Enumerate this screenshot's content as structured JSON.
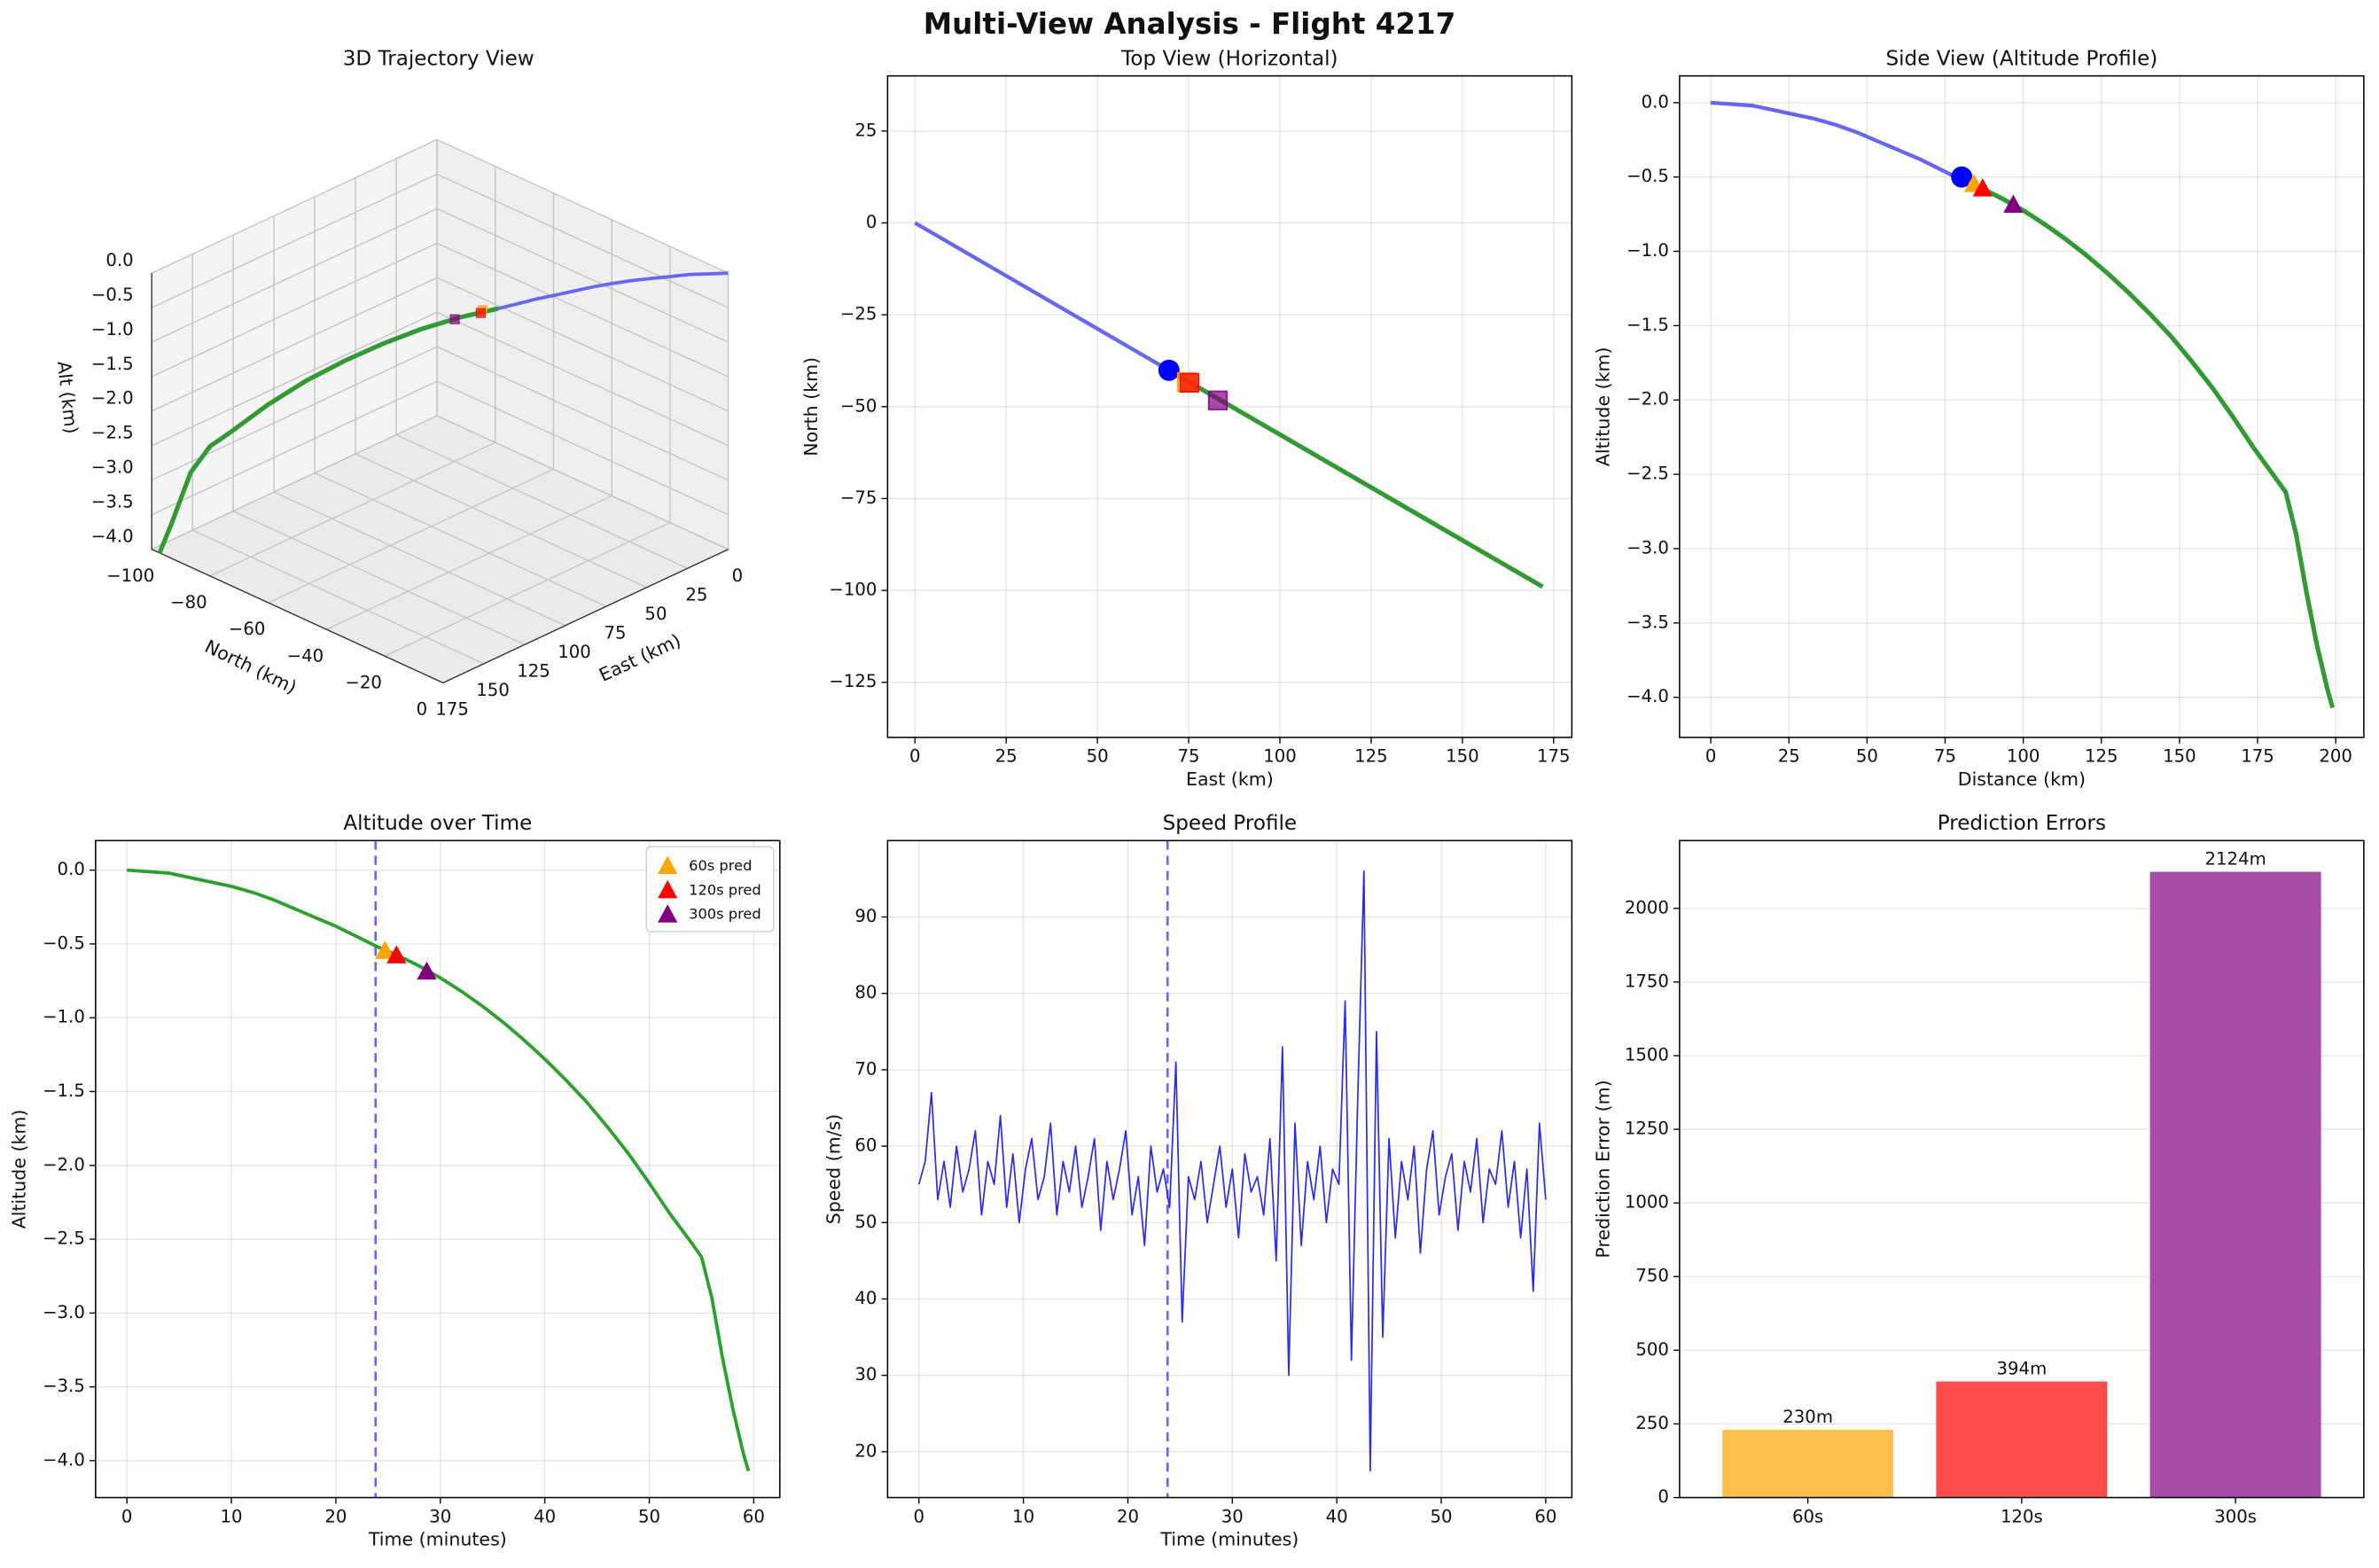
{
  "title": "Multi-View Analysis - Flight 4217",
  "chart_data": [
    {
      "type": "line3d",
      "title": "3D Trajectory View",
      "xlabel": "East (km)",
      "ylabel": "North (km)",
      "zlabel": "Alt (km)",
      "xlim": [
        0,
        175
      ],
      "ylim": [
        -100,
        0
      ],
      "zlim": [
        -4,
        0
      ],
      "xticks": [
        0,
        25,
        50,
        75,
        100,
        125,
        150,
        175
      ],
      "yticks": [
        {
          "value": -100,
          "label": "−100"
        },
        {
          "value": -80,
          "label": "−80"
        },
        {
          "value": -60,
          "label": "−60"
        },
        {
          "value": -40,
          "label": "−40"
        },
        {
          "value": -20,
          "label": "−20"
        },
        0
      ],
      "zticks": [
        {
          "value": 0,
          "label": "0.0"
        },
        {
          "value": -0.5,
          "label": "−0.5"
        },
        {
          "value": -1,
          "label": "−1.0"
        },
        {
          "value": -1.5,
          "label": "−1.5"
        },
        {
          "value": -2,
          "label": "−2.0"
        },
        {
          "value": -2.5,
          "label": "−2.5"
        },
        {
          "value": -3,
          "label": "−3.0"
        },
        {
          "value": -3.5,
          "label": "−3.5"
        },
        {
          "value": -4,
          "label": "−4.0"
        }
      ],
      "series": [
        {
          "color": "#6666f0",
          "linewidth": 2.2,
          "x": [
            0,
            5.8,
            11.6,
            17.4,
            23.2,
            29,
            34.8,
            40.6,
            46.4,
            52.2,
            58,
            63.8,
            69.6
          ],
          "y": [
            0,
            -3.3,
            -6.7,
            -10,
            -13.4,
            -16.7,
            -20,
            -23.4,
            -26.7,
            -30,
            -33.4,
            -36.7,
            -40.1
          ],
          "values": [
            0,
            -0.01,
            -0.02,
            -0.05,
            -0.08,
            -0.11,
            -0.15,
            -0.2,
            -0.26,
            -0.32,
            -0.38,
            -0.45,
            -0.52
          ]
        },
        {
          "color": "#339933",
          "linewidth": 3,
          "x": [
            69.6,
            81.2,
            92.8,
            104.4,
            116,
            127.6,
            139.2,
            150.8,
            156.7,
            162.5,
            168.3,
            172
          ],
          "y": [
            -40.1,
            -46.8,
            -53.5,
            -60.1,
            -66.8,
            -73.5,
            -80.2,
            -86.9,
            -90.2,
            -93.6,
            -97,
            -99
          ],
          "values": [
            -0.52,
            -0.65,
            -0.82,
            -1.03,
            -1.28,
            -1.57,
            -1.92,
            -2.33,
            -2.52,
            -2.9,
            -3.65,
            -4.07
          ]
        },
        {
          "color": "#ffa500",
          "marker": "square",
          "x": [
            74
          ],
          "y": [
            -43
          ],
          "values": [
            -0.55
          ]
        },
        {
          "color": "#ff0000",
          "marker": "square",
          "x": [
            75
          ],
          "y": [
            -43
          ],
          "values": [
            -0.58
          ]
        },
        {
          "color": "#800080",
          "marker": "square",
          "x": [
            82
          ],
          "y": [
            -48
          ],
          "values": [
            -0.69
          ]
        }
      ]
    },
    {
      "type": "line",
      "title": "Top View (Horizontal)",
      "xlabel": "East (km)",
      "ylabel": "North (km)",
      "grid": true,
      "xlim": [
        -7.5,
        180
      ],
      "ylim": [
        -140,
        40
      ],
      "xticks": [
        0,
        25,
        50,
        75,
        100,
        125,
        150,
        175
      ],
      "yticks": [
        25,
        0,
        {
          "value": -25,
          "label": "−25"
        },
        {
          "value": -50,
          "label": "−50"
        },
        {
          "value": -75,
          "label": "−75"
        },
        {
          "value": -100,
          "label": "−100"
        },
        {
          "value": -125,
          "label": "−125"
        }
      ],
      "series": [
        {
          "color": "#6666f0",
          "linewidth": 2.5,
          "x": [
            0,
            69.6
          ],
          "values": [
            0,
            -40.1
          ]
        },
        {
          "color": "#339933",
          "linewidth": 3,
          "x": [
            69.6,
            172
          ],
          "values": [
            -40.1,
            -99
          ]
        },
        {
          "color": "#0000ff",
          "marker": "circle",
          "x": [
            69.6
          ],
          "values": [
            -40.1
          ]
        },
        {
          "color": "#ffa500",
          "marker": "square",
          "x": [
            74.5
          ],
          "values": [
            -43.3
          ]
        },
        {
          "color": "#ff0000",
          "marker": "square",
          "x": [
            75.2
          ],
          "values": [
            -43.5
          ]
        },
        {
          "color": "#800080",
          "marker": "square",
          "x": [
            83
          ],
          "values": [
            -48.3
          ]
        }
      ]
    },
    {
      "type": "line",
      "title": "Side View (Altitude Profile)",
      "xlabel": "Distance (km)",
      "ylabel": "Altitude (km)",
      "grid": true,
      "xlim": [
        -10,
        209
      ],
      "ylim": [
        -4.27,
        0.18
      ],
      "xticks": [
        0,
        25,
        50,
        75,
        100,
        125,
        150,
        175,
        200
      ],
      "yticks": [
        {
          "value": 0,
          "label": "0.0"
        },
        {
          "value": -0.5,
          "label": "−0.5"
        },
        {
          "value": -1,
          "label": "−1.0"
        },
        {
          "value": -1.5,
          "label": "−1.5"
        },
        {
          "value": -2,
          "label": "−2.0"
        },
        {
          "value": -2.5,
          "label": "−2.5"
        },
        {
          "value": -3,
          "label": "−3.0"
        },
        {
          "value": -3.5,
          "label": "−3.5"
        },
        {
          "value": -4,
          "label": "−4.0"
        }
      ],
      "series": [
        {
          "color": "#6666f0",
          "linewidth": 2.5,
          "x": [
            0,
            6.7,
            13.4,
            20.1,
            26.8,
            33.5,
            40.1,
            46.8,
            53.5,
            60.2,
            66.9,
            73.6,
            80.3
          ],
          "values": [
            0,
            -0.01,
            -0.02,
            -0.05,
            -0.08,
            -0.11,
            -0.15,
            -0.2,
            -0.26,
            -0.32,
            -0.38,
            -0.45,
            -0.52
          ]
        },
        {
          "color": "#339933",
          "linewidth": 3,
          "x": [
            80.3,
            87,
            93.7,
            100.4,
            107,
            113.7,
            120.4,
            127.1,
            133.8,
            140.5,
            147.2,
            153.9,
            160.6,
            167.3,
            174,
            180.6,
            184,
            187.3,
            190.7,
            194,
            197.4,
            199
          ],
          "values": [
            -0.52,
            -0.58,
            -0.65,
            -0.73,
            -0.82,
            -0.92,
            -1.03,
            -1.15,
            -1.28,
            -1.42,
            -1.57,
            -1.74,
            -1.92,
            -2.12,
            -2.33,
            -2.52,
            -2.62,
            -2.9,
            -3.3,
            -3.65,
            -3.95,
            -4.07
          ]
        },
        {
          "color": "#0000ff",
          "marker": "circle",
          "x": [
            80.3
          ],
          "values": [
            -0.5
          ]
        },
        {
          "color": "#ffa500",
          "marker": "triangle",
          "x": [
            84.2
          ],
          "values": [
            -0.55
          ]
        },
        {
          "color": "#ff0000",
          "marker": "triangle",
          "x": [
            87
          ],
          "values": [
            -0.58
          ]
        },
        {
          "color": "#800080",
          "marker": "triangle",
          "x": [
            96.8
          ],
          "values": [
            -0.69
          ]
        }
      ]
    },
    {
      "type": "line",
      "title": "Altitude over Time",
      "xlabel": "Time (minutes)",
      "ylabel": "Altitude (km)",
      "grid": true,
      "legend": "upper right",
      "xlim": [
        -3,
        62.5
      ],
      "ylim": [
        -4.25,
        0.2
      ],
      "xticks": [
        0,
        10,
        20,
        30,
        40,
        50,
        60
      ],
      "yticks": [
        {
          "value": 0,
          "label": "0.0"
        },
        {
          "value": -0.5,
          "label": "−0.5"
        },
        {
          "value": -1,
          "label": "−1.0"
        },
        {
          "value": -1.5,
          "label": "−1.5"
        },
        {
          "value": -2,
          "label": "−2.0"
        },
        {
          "value": -2.5,
          "label": "−2.5"
        },
        {
          "value": -3,
          "label": "−3.0"
        },
        {
          "value": -3.5,
          "label": "−3.5"
        },
        {
          "value": -4,
          "label": "−4.0"
        }
      ],
      "vline": 23.8,
      "vline_color": "#6666ee",
      "series": [
        {
          "color": "#2ca02c",
          "linewidth": 2.2,
          "x": [
            0,
            2,
            4,
            6,
            8,
            10,
            12,
            14,
            16,
            18,
            20,
            22,
            24,
            26,
            28,
            30,
            32,
            34,
            36,
            38,
            40,
            42,
            44,
            46,
            48,
            50,
            52,
            54,
            55,
            56,
            57,
            58,
            59,
            59.5
          ],
          "values": [
            0,
            -0.01,
            -0.02,
            -0.05,
            -0.08,
            -0.11,
            -0.15,
            -0.2,
            -0.26,
            -0.32,
            -0.38,
            -0.45,
            -0.52,
            -0.58,
            -0.65,
            -0.73,
            -0.82,
            -0.92,
            -1.03,
            -1.15,
            -1.28,
            -1.42,
            -1.57,
            -1.74,
            -1.92,
            -2.12,
            -2.33,
            -2.52,
            -2.62,
            -2.9,
            -3.3,
            -3.65,
            -3.95,
            -4.07
          ]
        },
        {
          "name": "60s pred",
          "color": "#ffa500",
          "marker": "triangle",
          "x": [
            24.7
          ],
          "values": [
            -0.55
          ]
        },
        {
          "name": "120s pred",
          "color": "#ff0000",
          "marker": "triangle",
          "x": [
            25.8
          ],
          "values": [
            -0.58
          ]
        },
        {
          "name": "300s pred",
          "color": "#800080",
          "marker": "triangle",
          "x": [
            28.7
          ],
          "values": [
            -0.69
          ]
        }
      ]
    },
    {
      "type": "line",
      "title": "Speed Profile",
      "xlabel": "Time (minutes)",
      "ylabel": "Speed (m/s)",
      "grid": true,
      "xlim": [
        -3,
        62.5
      ],
      "ylim": [
        14,
        100
      ],
      "xticks": [
        0,
        10,
        20,
        30,
        40,
        50,
        60
      ],
      "yticks": [
        20,
        30,
        40,
        50,
        60,
        70,
        80,
        90
      ],
      "vline": 23.8,
      "vline_color": "#6666ee",
      "series": [
        {
          "color": "#2b2bee",
          "linewidth": 1,
          "x": [
            0,
            0.6,
            1.2,
            1.8,
            2.4,
            3,
            3.6,
            4.2,
            4.8,
            5.4,
            6,
            6.6,
            7.2,
            7.8,
            8.4,
            9,
            9.6,
            10.2,
            10.8,
            11.4,
            12,
            12.6,
            13.2,
            13.8,
            14.4,
            15,
            15.6,
            16.2,
            16.8,
            17.4,
            18,
            18.6,
            19.2,
            19.8,
            20.4,
            21,
            21.6,
            22.2,
            22.8,
            23.4,
            24,
            24.6,
            25.2,
            25.8,
            26.4,
            27,
            27.6,
            28.2,
            28.8,
            29.4,
            30,
            30.6,
            31.2,
            31.8,
            32.4,
            33,
            33.6,
            34.2,
            34.8,
            35.4,
            36,
            36.6,
            37.2,
            37.8,
            38.4,
            39,
            39.6,
            40.2,
            40.8,
            41.4,
            42,
            42.6,
            43.2,
            43.8,
            44.4,
            45,
            45.6,
            46.2,
            46.8,
            47.4,
            48,
            48.6,
            49.2,
            49.8,
            50.4,
            51,
            51.6,
            52.2,
            52.8,
            53.4,
            54,
            54.6,
            55.2,
            55.8,
            56.4,
            57,
            57.6,
            58.2,
            58.8,
            59.4,
            60
          ],
          "values": [
            55,
            58,
            67,
            53,
            58,
            52,
            60,
            54,
            57,
            62,
            51,
            58,
            55,
            64,
            52,
            59,
            50,
            57,
            61,
            53,
            56,
            63,
            51,
            58,
            54,
            60,
            52,
            56,
            61,
            49,
            58,
            53,
            57,
            62,
            51,
            56,
            47,
            60,
            54,
            57,
            52,
            71,
            37,
            56,
            53,
            58,
            50,
            55,
            60,
            52,
            57,
            48,
            59,
            54,
            56,
            51,
            61,
            45,
            73,
            30,
            63,
            47,
            58,
            53,
            60,
            50,
            57,
            55,
            79,
            32,
            66,
            96,
            17.5,
            75,
            35,
            61,
            48,
            58,
            53,
            60,
            46,
            57,
            62,
            51,
            56,
            59,
            49,
            58,
            54,
            61,
            50,
            57,
            55,
            62,
            52,
            58,
            48,
            57,
            41,
            63,
            53
          ]
        }
      ]
    },
    {
      "type": "bar",
      "title": "Prediction Errors",
      "ylabel": "Prediction Error (m)",
      "grid": "y",
      "categories": [
        "60s",
        "120s",
        "300s"
      ],
      "values": [
        230,
        394,
        2124
      ],
      "value_labels": [
        "230m",
        "394m",
        "2124m"
      ],
      "colors": [
        "#ffbf4d",
        "#ff4d4d",
        "#a64ca6"
      ],
      "ylim": [
        0,
        2230
      ],
      "yticks": [
        0,
        250,
        500,
        750,
        1000,
        1250,
        1500,
        1750,
        2000
      ]
    }
  ]
}
